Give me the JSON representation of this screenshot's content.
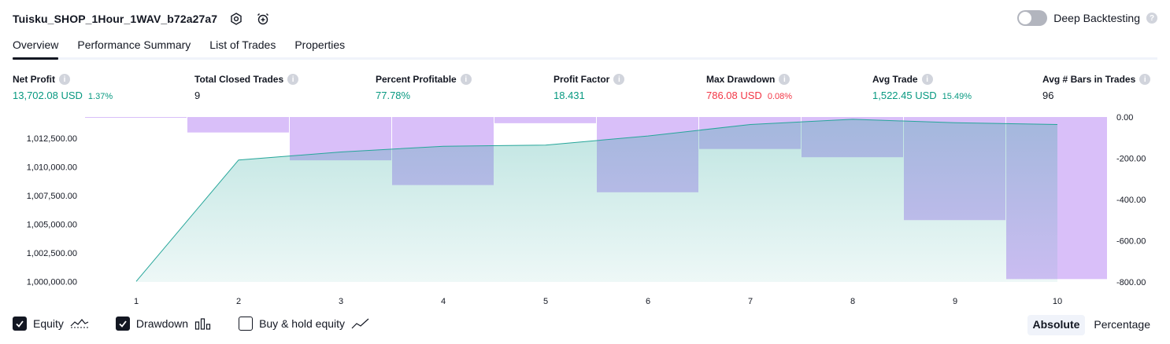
{
  "header": {
    "strategy_title": "Tuisku_SHOP_1Hour_1WAV_b72a27a7",
    "settings_icon": "gear-icon",
    "alert_icon": "alarm-clock-plus-icon",
    "deep_backtesting_label": "Deep Backtesting",
    "deep_backtesting_enabled": false
  },
  "tabs": [
    {
      "label": "Overview",
      "active": true
    },
    {
      "label": "Performance Summary",
      "active": false
    },
    {
      "label": "List of Trades",
      "active": false
    },
    {
      "label": "Properties",
      "active": false
    }
  ],
  "metrics": [
    {
      "label": "Net Profit",
      "value": "13,702.08 USD",
      "sub": "1.37%",
      "tone": "pos"
    },
    {
      "label": "Total Closed Trades",
      "value": "9",
      "sub": "",
      "tone": "neu"
    },
    {
      "label": "Percent Profitable",
      "value": "77.78%",
      "sub": "",
      "tone": "pos"
    },
    {
      "label": "Profit Factor",
      "value": "18.431",
      "sub": "",
      "tone": "pos"
    },
    {
      "label": "Max Drawdown",
      "value": "786.08 USD",
      "sub": "0.08%",
      "tone": "neg"
    },
    {
      "label": "Avg Trade",
      "value": "1,522.45 USD",
      "sub": "15.49%",
      "tone": "pos"
    },
    {
      "label": "Avg # Bars in Trades",
      "value": "96",
      "sub": "",
      "tone": "neu"
    }
  ],
  "colors": {
    "equity_line": "#26a69a",
    "drawdown_bar": "#d9bff9",
    "positive": "#089981",
    "negative": "#f23645"
  },
  "chart_data": {
    "type": "area",
    "x": [
      1,
      2,
      3,
      4,
      5,
      6,
      7,
      8,
      9,
      10
    ],
    "series": [
      {
        "values": [
          1000000,
          1010600,
          1011300,
          1011800,
          1011900,
          1012700,
          1013700,
          1014150,
          1013850,
          1013702
        ]
      },
      {
        "values": [
          0,
          -75,
          -210,
          -330,
          -30,
          -365,
          -155,
          -195,
          -500,
          -786
        ]
      }
    ],
    "left_axis": {
      "ticks": [
        "1,000,000.00",
        "1,002,500.00",
        "1,005,000.00",
        "1,007,500.00",
        "1,010,000.00",
        "1,012,500.00"
      ],
      "range": [
        999950,
        1014350
      ]
    },
    "right_axis": {
      "ticks": [
        "0.00",
        "-200.00",
        "-400.00",
        "-600.00",
        "-800.00"
      ],
      "range": [
        -800,
        0
      ]
    },
    "x_tick_labels": [
      "1",
      "2",
      "3",
      "4",
      "5",
      "6",
      "7",
      "8",
      "9",
      "10"
    ]
  },
  "legend": [
    {
      "label": "Equity",
      "checked": true,
      "icon": "equity-line-icon"
    },
    {
      "label": "Drawdown",
      "checked": true,
      "icon": "drawdown-bars-icon"
    },
    {
      "label": "Buy & hold equity",
      "checked": false,
      "icon": "buy-hold-line-icon"
    }
  ],
  "mode_buttons": [
    {
      "label": "Absolute",
      "active": true
    },
    {
      "label": "Percentage",
      "active": false
    }
  ]
}
